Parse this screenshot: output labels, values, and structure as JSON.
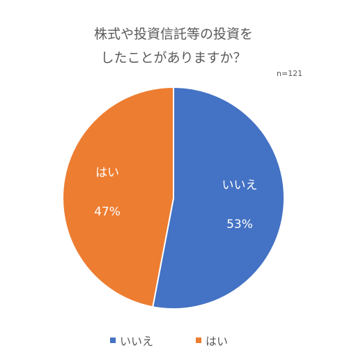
{
  "title_lines": [
    "株式や投資信託等の投資を",
    "したことがありますか？"
  ],
  "sample_size": "n=121",
  "chart_data": {
    "type": "pie",
    "title": "株式や投資信託等の投資を したことがありますか？",
    "slices": [
      {
        "label": "いいえ",
        "value": 53,
        "value_label": "53%",
        "color": "#4472c4"
      },
      {
        "label": "はい",
        "value": 47,
        "value_label": "47%",
        "color": "#ed7d31"
      }
    ],
    "legend_position": "bottom",
    "slice_border_color": "#ffffff"
  }
}
